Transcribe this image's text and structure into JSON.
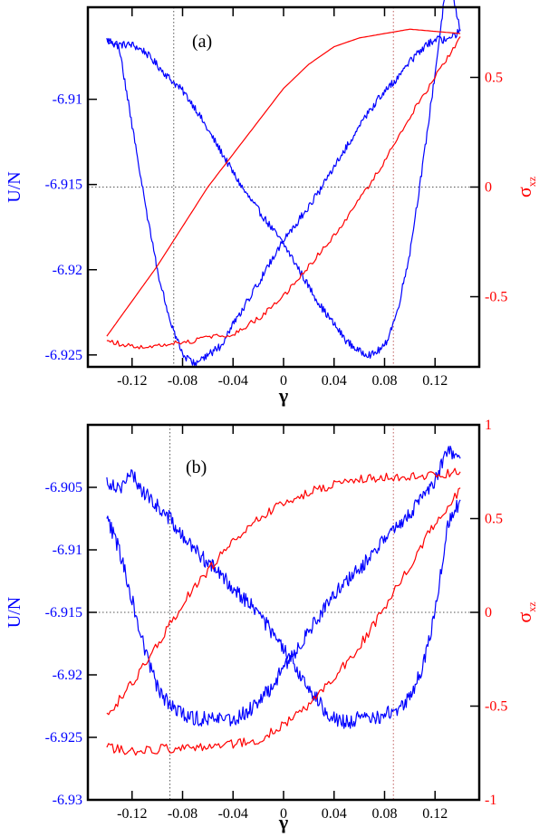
{
  "chart_data": [
    {
      "type": "line",
      "panel_label": "(a)",
      "xlabel": "γ",
      "ylabel_left": "U/N",
      "ylabel_right": {
        "main": "σ",
        "sub": "xz"
      },
      "xlim": [
        -0.155,
        0.155
      ],
      "ylim_left": [
        -6.9257,
        -6.9046
      ],
      "ylim_right": [
        -0.82,
        0.82
      ],
      "x_ticks": [
        -0.12,
        -0.08,
        -0.04,
        0,
        0.04,
        0.08,
        0.12
      ],
      "x_tick_labels": [
        "-0.12",
        "-0.08",
        "-0.04",
        "0",
        "0.04",
        "0.08",
        "0.12"
      ],
      "y_left_ticks": [
        -6.925,
        -6.92,
        -6.915,
        -6.91
      ],
      "y_left_tick_labels": [
        "-6.925",
        "-6.92",
        "-6.915",
        "-6.91"
      ],
      "y_right_ticks": [
        -0.5,
        0,
        0.5
      ],
      "y_right_tick_labels": [
        "-0.5",
        "0",
        "0.5"
      ],
      "reference_lines": {
        "x": [
          -0.087,
          0.087
        ],
        "y_right": 0
      },
      "series": [
        {
          "axis": "left",
          "color": "#0000ff",
          "noise": 0.00022,
          "x": [
            -0.14,
            -0.13,
            -0.12,
            -0.11,
            -0.1,
            -0.09,
            -0.08,
            -0.07,
            -0.06,
            -0.05,
            -0.04,
            -0.03,
            -0.02,
            -0.01,
            0.0,
            0.01,
            0.02,
            0.03,
            0.04,
            0.05,
            0.06,
            0.07,
            0.08,
            0.09,
            0.1,
            0.11,
            0.12,
            0.13,
            0.14
          ],
          "y": [
            -6.9065,
            -6.9068,
            -6.9068,
            -6.9072,
            -6.908,
            -6.9088,
            -6.9095,
            -6.9105,
            -6.9118,
            -6.913,
            -6.9143,
            -6.9155,
            -6.9165,
            -6.9175,
            -6.9185,
            -6.9197,
            -6.921,
            -6.9222,
            -6.9232,
            -6.9242,
            -6.9248,
            -6.925,
            -6.9245,
            -6.9225,
            -6.919,
            -6.914,
            -6.9085,
            -6.9025,
            -6.906
          ]
        },
        {
          "axis": "left",
          "color": "#0000ff",
          "noise": 0.00022,
          "x": [
            0.14,
            0.13,
            0.12,
            0.11,
            0.1,
            0.09,
            0.08,
            0.07,
            0.06,
            0.05,
            0.04,
            0.03,
            0.02,
            0.01,
            0.0,
            -0.01,
            -0.02,
            -0.03,
            -0.04,
            -0.05,
            -0.06,
            -0.07,
            -0.08,
            -0.09,
            -0.1,
            -0.11,
            -0.12,
            -0.13,
            -0.14
          ],
          "y": [
            -6.906,
            -6.9065,
            -6.9065,
            -6.907,
            -6.9078,
            -6.9088,
            -6.9095,
            -6.9105,
            -6.9115,
            -6.9128,
            -6.914,
            -6.9152,
            -6.9163,
            -6.9173,
            -6.9182,
            -6.9195,
            -6.9208,
            -6.922,
            -6.9232,
            -6.9245,
            -6.925,
            -6.9255,
            -6.925,
            -6.923,
            -6.92,
            -6.916,
            -6.9115,
            -6.907,
            -6.9065
          ]
        },
        {
          "axis": "right",
          "color": "#ff0000",
          "noise": 0.0,
          "x": [
            -0.14,
            -0.12,
            -0.1,
            -0.08,
            -0.06,
            -0.04,
            -0.02,
            0.0,
            0.02,
            0.04,
            0.06,
            0.08,
            0.1,
            0.12,
            0.14
          ],
          "y": [
            -0.68,
            -0.52,
            -0.36,
            -0.18,
            0.0,
            0.15,
            0.3,
            0.45,
            0.56,
            0.64,
            0.68,
            0.7,
            0.72,
            0.71,
            0.7
          ]
        },
        {
          "axis": "right",
          "color": "#ff0000",
          "noise": 0.012,
          "x": [
            0.14,
            0.12,
            0.1,
            0.08,
            0.06,
            0.04,
            0.02,
            0.0,
            -0.02,
            -0.04,
            -0.06,
            -0.08,
            -0.1,
            -0.12,
            -0.14
          ],
          "y": [
            0.68,
            0.5,
            0.32,
            0.12,
            -0.06,
            -0.22,
            -0.36,
            -0.5,
            -0.6,
            -0.67,
            -0.69,
            -0.71,
            -0.72,
            -0.73,
            -0.7
          ]
        }
      ]
    },
    {
      "type": "line",
      "panel_label": "(b)",
      "xlabel": "γ",
      "ylabel_left": "U/N",
      "ylabel_right": {
        "main": "σ",
        "sub": "xz"
      },
      "xlim": [
        -0.155,
        0.155
      ],
      "ylim_left": [
        -6.93,
        -6.9
      ],
      "ylim_right": [
        -1,
        1
      ],
      "x_ticks": [
        -0.12,
        -0.08,
        -0.04,
        0,
        0.04,
        0.08,
        0.12
      ],
      "x_tick_labels": [
        "-0.12",
        "-0.08",
        "-0.04",
        "0",
        "0.04",
        "0.08",
        "0.12"
      ],
      "y_left_ticks": [
        -6.93,
        -6.925,
        -6.92,
        -6.915,
        -6.91,
        -6.905
      ],
      "y_left_tick_labels": [
        "-6.93",
        "-6.925",
        "-6.92",
        "-6.915",
        "-6.91",
        "-6.905"
      ],
      "y_right_ticks": [
        -1,
        -0.5,
        0,
        0.5,
        1
      ],
      "y_right_tick_labels": [
        "-1",
        "-0.5",
        "0",
        "0.5",
        "1"
      ],
      "reference_lines": {
        "x": [
          -0.09,
          0.087
        ],
        "y_right": 0
      },
      "series": [
        {
          "axis": "left",
          "color": "#0000ff",
          "noise": 0.0006,
          "x": [
            -0.14,
            -0.13,
            -0.12,
            -0.11,
            -0.1,
            -0.09,
            -0.08,
            -0.07,
            -0.06,
            -0.05,
            -0.04,
            -0.03,
            -0.02,
            -0.01,
            0.0,
            0.01,
            0.02,
            0.03,
            0.04,
            0.05,
            0.06,
            0.07,
            0.08,
            0.09,
            0.1,
            0.11,
            0.12,
            0.13,
            0.14
          ],
          "y": [
            -6.9045,
            -6.905,
            -6.904,
            -6.9055,
            -6.9065,
            -6.9075,
            -6.909,
            -6.91,
            -6.911,
            -6.912,
            -6.913,
            -6.914,
            -6.915,
            -6.9165,
            -6.918,
            -6.9195,
            -6.921,
            -6.9225,
            -6.9235,
            -6.9238,
            -6.9235,
            -6.9235,
            -6.9232,
            -6.9228,
            -6.9218,
            -6.9195,
            -6.915,
            -6.908,
            -6.906
          ]
        },
        {
          "axis": "left",
          "color": "#0000ff",
          "noise": 0.0006,
          "x": [
            0.14,
            0.13,
            0.12,
            0.11,
            0.1,
            0.09,
            0.08,
            0.07,
            0.06,
            0.05,
            0.04,
            0.03,
            0.02,
            0.01,
            0.0,
            -0.01,
            -0.02,
            -0.03,
            -0.04,
            -0.05,
            -0.06,
            -0.07,
            -0.08,
            -0.09,
            -0.1,
            -0.11,
            -0.12,
            -0.13,
            -0.14
          ],
          "y": [
            -6.903,
            -6.902,
            -6.9045,
            -6.906,
            -6.907,
            -6.908,
            -6.909,
            -6.9105,
            -6.9115,
            -6.9125,
            -6.9135,
            -6.915,
            -6.9165,
            -6.918,
            -6.9195,
            -6.921,
            -6.9222,
            -6.923,
            -6.9235,
            -6.9235,
            -6.9235,
            -6.9235,
            -6.9232,
            -6.9225,
            -6.921,
            -6.918,
            -6.914,
            -6.91,
            -6.9075
          ]
        },
        {
          "axis": "right",
          "color": "#ff0000",
          "noise": 0.025,
          "x": [
            -0.14,
            -0.12,
            -0.1,
            -0.08,
            -0.06,
            -0.04,
            -0.02,
            0.0,
            0.02,
            0.04,
            0.06,
            0.08,
            0.1,
            0.12,
            0.14
          ],
          "y": [
            -0.55,
            -0.38,
            -0.18,
            0.05,
            0.22,
            0.38,
            0.5,
            0.58,
            0.64,
            0.68,
            0.71,
            0.72,
            0.72,
            0.73,
            0.75
          ]
        },
        {
          "axis": "right",
          "color": "#ff0000",
          "noise": 0.025,
          "x": [
            0.14,
            0.12,
            0.1,
            0.08,
            0.06,
            0.04,
            0.02,
            0.0,
            -0.02,
            -0.04,
            -0.06,
            -0.08,
            -0.1,
            -0.12,
            -0.14
          ],
          "y": [
            0.65,
            0.48,
            0.25,
            0.02,
            -0.18,
            -0.35,
            -0.5,
            -0.6,
            -0.68,
            -0.7,
            -0.71,
            -0.72,
            -0.73,
            -0.74,
            -0.72
          ]
        }
      ]
    }
  ]
}
